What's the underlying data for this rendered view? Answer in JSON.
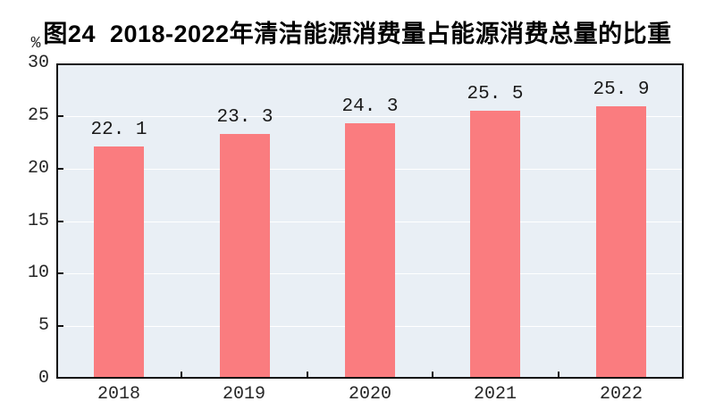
{
  "figure": {
    "title": "图24  2018-2022年清洁能源消费量占能源消费总量的比重",
    "unit_label": "%"
  },
  "chart_data": {
    "type": "bar",
    "title": "图24 2018-2022年清洁能源消费量占能源消费总量的比重",
    "categories": [
      "2018",
      "2019",
      "2020",
      "2021",
      "2022"
    ],
    "values": [
      22.1,
      23.3,
      24.3,
      25.5,
      25.9
    ],
    "value_labels": [
      "22. 1",
      "23. 3",
      "24. 3",
      "25. 5",
      "25. 9"
    ],
    "xlabel": "",
    "ylabel": "%",
    "ylim": [
      0,
      30
    ],
    "yticks": [
      0,
      5,
      10,
      15,
      20,
      25,
      30
    ],
    "grid": "horizontal",
    "gridline_values": [
      5,
      10,
      15,
      20,
      25
    ],
    "legend": "none",
    "colors": {
      "bar": "#FA7C7F",
      "plot_background": "#E9EFF5",
      "gridline": "#FFFFFF",
      "axis": "#111111",
      "title_text": "#000000",
      "tick_text": "#262626"
    }
  }
}
